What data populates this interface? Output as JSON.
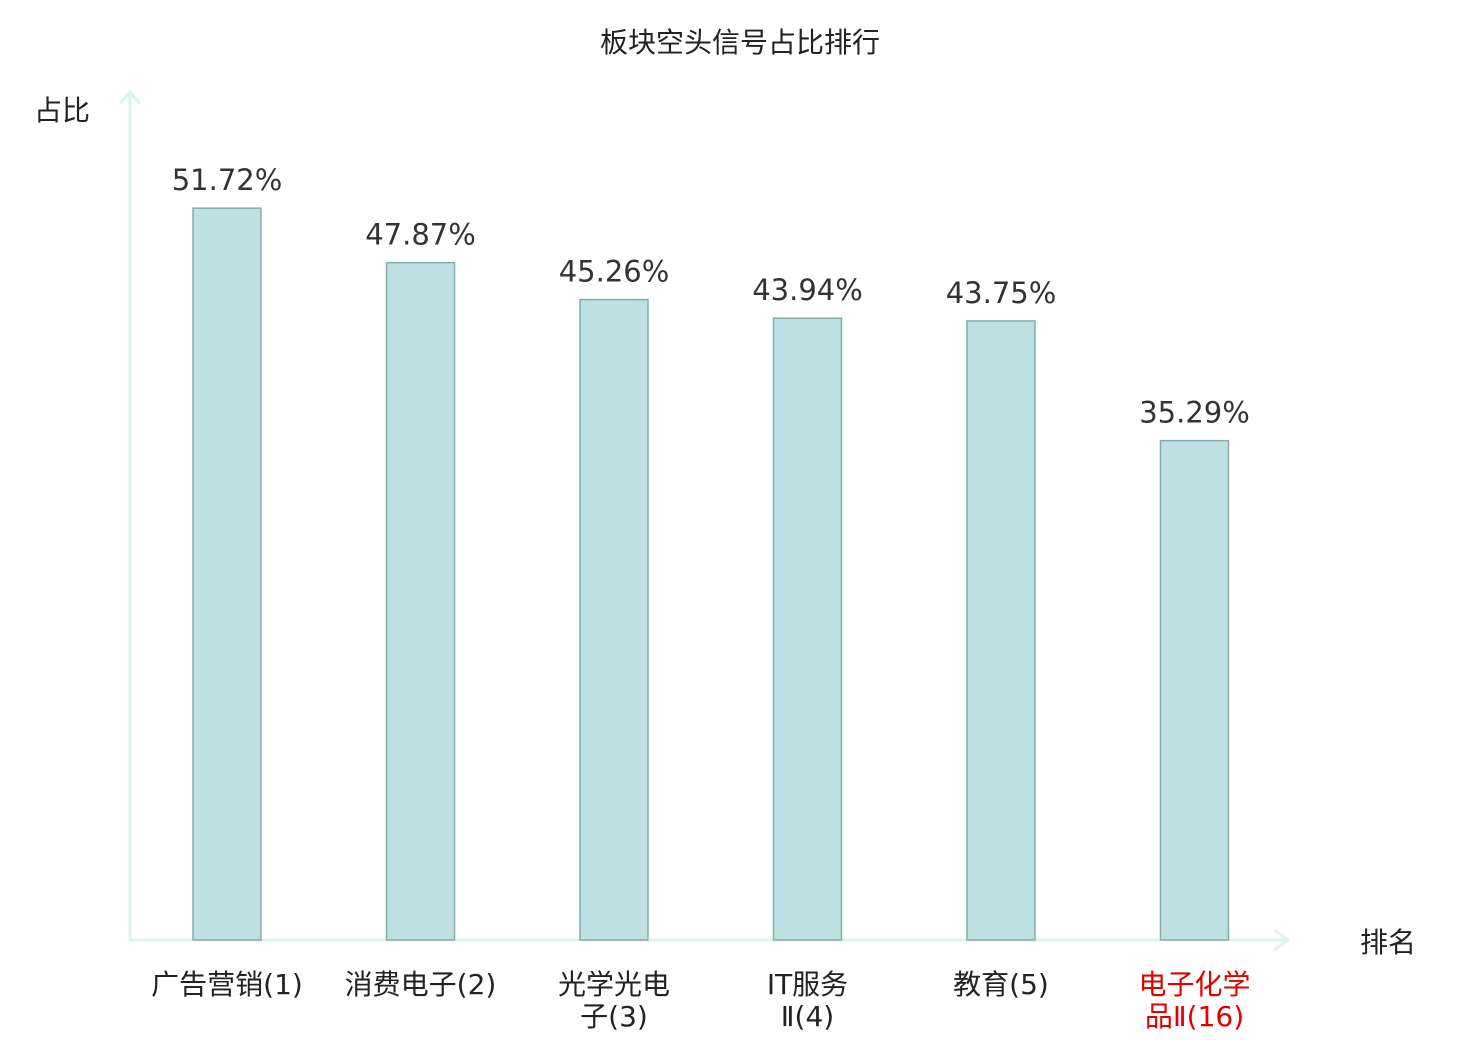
{
  "chart_data": {
    "type": "bar",
    "title": "板块空头信号占比排行",
    "ylabel": "占比",
    "xlabel": "排名",
    "ylim": [
      0,
      60
    ],
    "grid": false,
    "categories": [
      {
        "lines": [
          "广告营销(1)"
        ],
        "highlight": false
      },
      {
        "lines": [
          "消费电子(2)"
        ],
        "highlight": false
      },
      {
        "lines": [
          "光学光电",
          "子(3)"
        ],
        "highlight": false
      },
      {
        "lines": [
          "IT服务",
          "Ⅱ(4)"
        ],
        "highlight": false
      },
      {
        "lines": [
          "教育(5)"
        ],
        "highlight": false
      },
      {
        "lines": [
          "电子化学",
          "品Ⅱ(16)"
        ],
        "highlight": true
      }
    ],
    "values": [
      51.72,
      47.87,
      45.26,
      43.94,
      43.75,
      35.29
    ],
    "value_labels": [
      "51.72%",
      "47.87%",
      "45.26%",
      "43.94%",
      "43.75%",
      "35.29%"
    ],
    "colors": {
      "bar_fill": "#bde0e2",
      "bar_stroke": "#8aaaaa",
      "axis": "#e0f2ef",
      "highlight_label": "#e00000"
    }
  }
}
